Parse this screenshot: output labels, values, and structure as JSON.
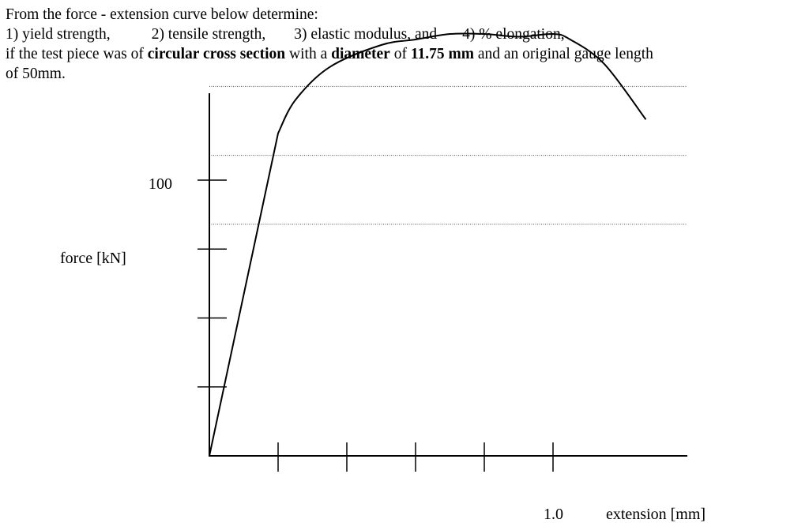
{
  "problem": {
    "intro": "From the force - extension curve below determine:",
    "tasks": [
      "1)  yield strength,",
      "2)  tensile strength,",
      "3)  elastic modulus, and",
      "4)  % elongation,"
    ],
    "condition": {
      "part1": "if the test piece was of ",
      "bold1": "circular cross section",
      "part2": " with a ",
      "bold2": "diameter",
      "part3": " of ",
      "bold3": "11.75 mm",
      "part4": " and an original gauge length",
      "line2": "of 50mm."
    }
  },
  "chart_data": {
    "type": "line",
    "title": "",
    "xlabel": "extension [mm]",
    "ylabel": "force [kN]",
    "xlim": [
      0,
      1.2
    ],
    "ylim": [
      0,
      150
    ],
    "x_ticks": [
      0.2,
      0.4,
      0.6,
      0.8,
      1.0
    ],
    "x_tick_labels": [
      {
        "x": 1.0,
        "label": "1.0"
      }
    ],
    "y_ticks": [
      25,
      50,
      75,
      100
    ],
    "y_tick_labels": [
      {
        "y": 100,
        "label": "100"
      }
    ],
    "dotted_reference_lines_y": [
      84,
      109,
      134
    ],
    "grid": false,
    "series": [
      {
        "x": [
          0,
          0.2,
          0.25,
          0.35,
          0.5,
          0.6,
          0.7,
          0.8,
          0.9,
          1.0,
          1.05,
          1.15,
          1.27
        ],
        "y": [
          0,
          117,
          129,
          141,
          149,
          151,
          153,
          153,
          152,
          153,
          151,
          142,
          122
        ]
      }
    ]
  }
}
